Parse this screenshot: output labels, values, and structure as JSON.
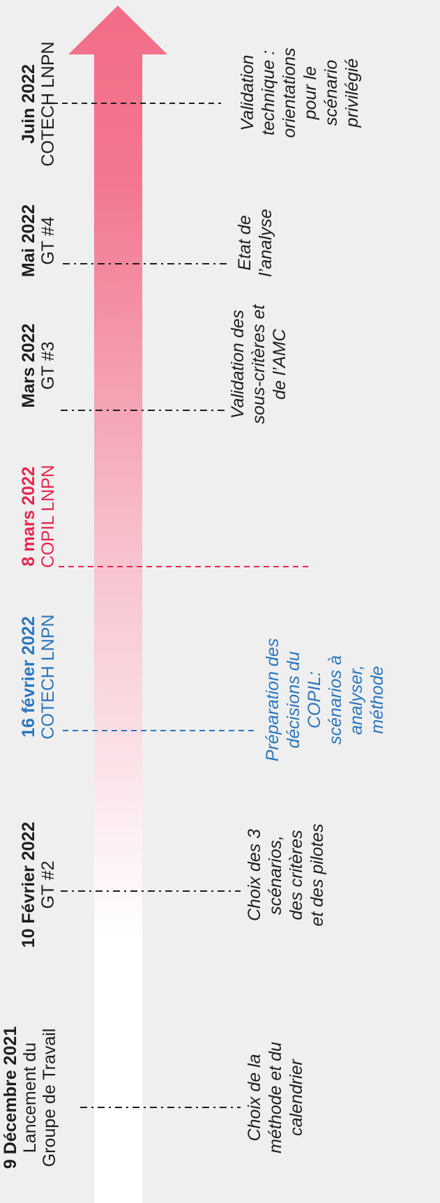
{
  "colors": {
    "background": "#efefef",
    "arrow_start": "#ffffff",
    "arrow_end": "#f2708a",
    "text": "#1e1e1e",
    "cotech_blue": "#2a76bd",
    "copil_red": "#e8254f"
  },
  "events": [
    {
      "date": "9 Décembre 2021",
      "lines": [
        "Lancement du",
        "Groupe de Travail"
      ],
      "description": [
        "Choix de la",
        "méthode et du",
        "calendrier"
      ],
      "color": "black"
    },
    {
      "date": "10 Février 2022",
      "lines": [
        "GT #2"
      ],
      "description": [
        "Choix des 3",
        "scénarios,",
        "des critères",
        "et des pilotes"
      ],
      "color": "black"
    },
    {
      "date": "16 février 2022",
      "lines": [
        "COTECH LNPN"
      ],
      "description": [
        "Préparation des",
        "décisions du",
        "COPIL:",
        "scénarios à",
        "analyser,",
        "méthode"
      ],
      "color": "blue"
    },
    {
      "date": "8 mars 2022",
      "lines": [
        "COPIL LNPN"
      ],
      "description": [],
      "color": "red"
    },
    {
      "date": "Mars 2022",
      "lines": [
        "GT #3"
      ],
      "description": [
        "Validation des",
        "sous-critères et",
        "de l’AMC"
      ],
      "color": "black"
    },
    {
      "date": "Mai 2022",
      "lines": [
        "GT #4"
      ],
      "description": [
        "Etat de",
        "l’analyse"
      ],
      "color": "black"
    },
    {
      "date": "Juin 2022",
      "lines": [
        "COTECH LNPN"
      ],
      "description": [
        "Validation",
        "technique :",
        "orientations",
        "pour le",
        "scénario",
        "privilégié"
      ],
      "color": "black"
    }
  ]
}
